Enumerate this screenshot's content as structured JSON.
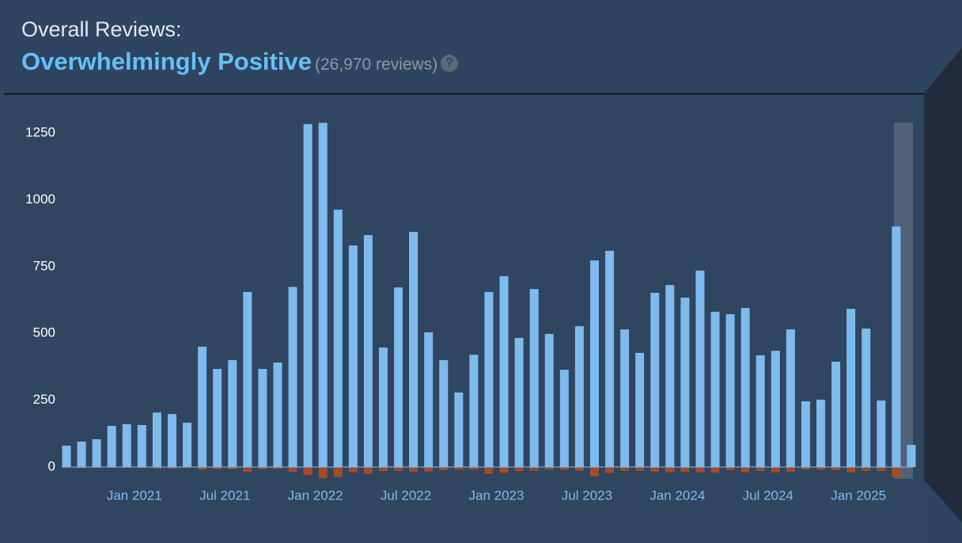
{
  "header": {
    "label": "Overall Reviews:",
    "summary": "Overwhelmingly Positive",
    "count": "(26,970 reviews)",
    "help_icon": "?"
  },
  "chart_data": {
    "type": "bar",
    "categories": [
      null,
      null,
      null,
      null,
      "Jan 2021",
      null,
      null,
      null,
      null,
      null,
      "Jul 2021",
      null,
      null,
      null,
      null,
      null,
      "Jan 2022",
      null,
      null,
      null,
      null,
      null,
      "Jul 2022",
      null,
      null,
      null,
      null,
      null,
      "Jan 2023",
      null,
      null,
      null,
      null,
      null,
      "Jul 2023",
      null,
      null,
      null,
      null,
      null,
      "Jan 2024",
      null,
      null,
      null,
      null,
      null,
      "Jul 2024",
      null,
      null,
      null,
      null,
      null,
      "Jan 2025",
      null,
      null,
      null,
      null
    ],
    "series": [
      {
        "color": "#7dbbee",
        "values": [
          80,
          95,
          104,
          154,
          160,
          157,
          204,
          198,
          166,
          450,
          367,
          400,
          655,
          367,
          391,
          674,
          1283,
          1288,
          963,
          829,
          868,
          447,
          672,
          880,
          504,
          400,
          279,
          420,
          655,
          714,
          483,
          666,
          498,
          364,
          527,
          773,
          809,
          515,
          427,
          652,
          681,
          634,
          735,
          581,
          572,
          595,
          418,
          435,
          515,
          246,
          252,
          394,
          592,
          518,
          249,
          900,
          83
        ]
      },
      {
        "color": "#a34c25",
        "values": [
          -2,
          -5,
          -3,
          -3,
          -3,
          -4,
          -6,
          -6,
          -4,
          -10,
          -8,
          -9,
          -18,
          -8,
          -7,
          -18,
          -30,
          -42,
          -38,
          -20,
          -25,
          -15,
          -14,
          -18,
          -17,
          -12,
          -10,
          -10,
          -25,
          -22,
          -15,
          -14,
          -10,
          -10,
          -14,
          -35,
          -22,
          -14,
          -14,
          -18,
          -20,
          -18,
          -20,
          -22,
          -12,
          -20,
          -14,
          -20,
          -18,
          -10,
          -10,
          -12,
          -20,
          -14,
          -14,
          -38,
          -3
        ]
      }
    ],
    "ylim": [
      -50,
      1300
    ],
    "yticks": [
      0,
      250,
      500,
      750,
      1000,
      1250
    ]
  }
}
